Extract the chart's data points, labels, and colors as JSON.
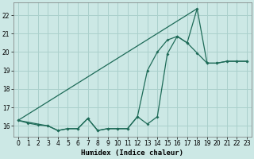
{
  "xlabel": "Humidex (Indice chaleur)",
  "bg_color": "#cce8e5",
  "grid_color": "#aad0cc",
  "line_color": "#1e6b58",
  "xlim": [
    -0.5,
    23.5
  ],
  "ylim": [
    15.4,
    22.7
  ],
  "yticks": [
    16,
    17,
    18,
    19,
    20,
    21,
    22
  ],
  "xticks": [
    0,
    1,
    2,
    3,
    4,
    5,
    6,
    7,
    8,
    9,
    10,
    11,
    12,
    13,
    14,
    15,
    16,
    17,
    18,
    19,
    20,
    21,
    22,
    23
  ],
  "line1_x": [
    0,
    18
  ],
  "line1_y": [
    16.3,
    22.35
  ],
  "line2_x": [
    0,
    3,
    4,
    5,
    6,
    7,
    8,
    9,
    10,
    11,
    12,
    13,
    14,
    15,
    16,
    17,
    18,
    19,
    20,
    21,
    22,
    23
  ],
  "line2_y": [
    16.3,
    16.0,
    15.75,
    15.85,
    15.85,
    16.4,
    15.75,
    15.85,
    15.85,
    15.85,
    16.5,
    19.0,
    20.0,
    20.65,
    20.85,
    20.5,
    19.95,
    19.4,
    19.4,
    19.5,
    19.5,
    19.5
  ],
  "line3_x": [
    0,
    1,
    2,
    3,
    4,
    5,
    6,
    7,
    8,
    9,
    10,
    11,
    12,
    13,
    14,
    15,
    16,
    17,
    18,
    19,
    20,
    21,
    22,
    23
  ],
  "line3_y": [
    16.3,
    16.15,
    16.05,
    16.0,
    15.75,
    15.85,
    15.85,
    16.4,
    15.75,
    15.85,
    15.85,
    15.85,
    16.5,
    16.1,
    16.5,
    19.9,
    20.85,
    20.5,
    22.35,
    19.4,
    19.4,
    19.5,
    19.5,
    19.5
  ]
}
